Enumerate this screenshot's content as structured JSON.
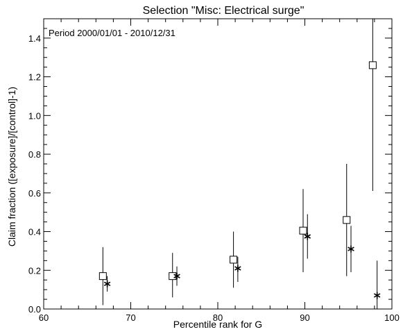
{
  "chart_data": {
    "type": "scatter",
    "title": "Selection \"Misc: Electrical surge\"",
    "annotation": "Period 2000/01/01 - 2010/12/31",
    "xlabel": "Percentile rank for G",
    "ylabel": "Claim fraction ([exposure]/[control]-1)",
    "xlim": [
      60,
      100
    ],
    "ylim": [
      0.0,
      1.5
    ],
    "x_ticks": [
      60,
      70,
      80,
      90,
      100
    ],
    "x_tick_labels": [
      "60",
      "70",
      "80",
      "90",
      "100"
    ],
    "y_ticks": [
      0.0,
      0.2,
      0.4,
      0.6,
      0.8,
      1.0,
      1.2,
      1.4
    ],
    "y_tick_labels": [
      "0.0",
      "0.2",
      "0.4",
      "0.6",
      "0.8",
      "1.0",
      "1.2",
      "1.4"
    ],
    "grid": false,
    "series": [
      {
        "marker": "square",
        "points": [
          {
            "x": 66.8,
            "y": 0.17,
            "ylow": 0.02,
            "yhigh": 0.32
          },
          {
            "x": 74.8,
            "y": 0.17,
            "ylow": 0.06,
            "yhigh": 0.29
          },
          {
            "x": 81.8,
            "y": 0.255,
            "ylow": 0.11,
            "yhigh": 0.4
          },
          {
            "x": 89.8,
            "y": 0.405,
            "ylow": 0.19,
            "yhigh": 0.62
          },
          {
            "x": 94.8,
            "y": 0.46,
            "ylow": 0.17,
            "yhigh": 0.75
          },
          {
            "x": 97.8,
            "y": 1.26,
            "ylow": 0.61,
            "yhigh": 1.5
          }
        ]
      },
      {
        "marker": "asterisk",
        "points": [
          {
            "x": 67.3,
            "y": 0.13,
            "ylow": 0.09,
            "yhigh": 0.17
          },
          {
            "x": 75.3,
            "y": 0.17,
            "ylow": 0.12,
            "yhigh": 0.22
          },
          {
            "x": 82.3,
            "y": 0.21,
            "ylow": 0.14,
            "yhigh": 0.27
          },
          {
            "x": 90.3,
            "y": 0.375,
            "ylow": 0.26,
            "yhigh": 0.49
          },
          {
            "x": 95.3,
            "y": 0.31,
            "ylow": 0.19,
            "yhigh": 0.43
          },
          {
            "x": 98.3,
            "y": 0.07,
            "ylow": 0.0,
            "yhigh": 0.25
          }
        ]
      }
    ]
  }
}
